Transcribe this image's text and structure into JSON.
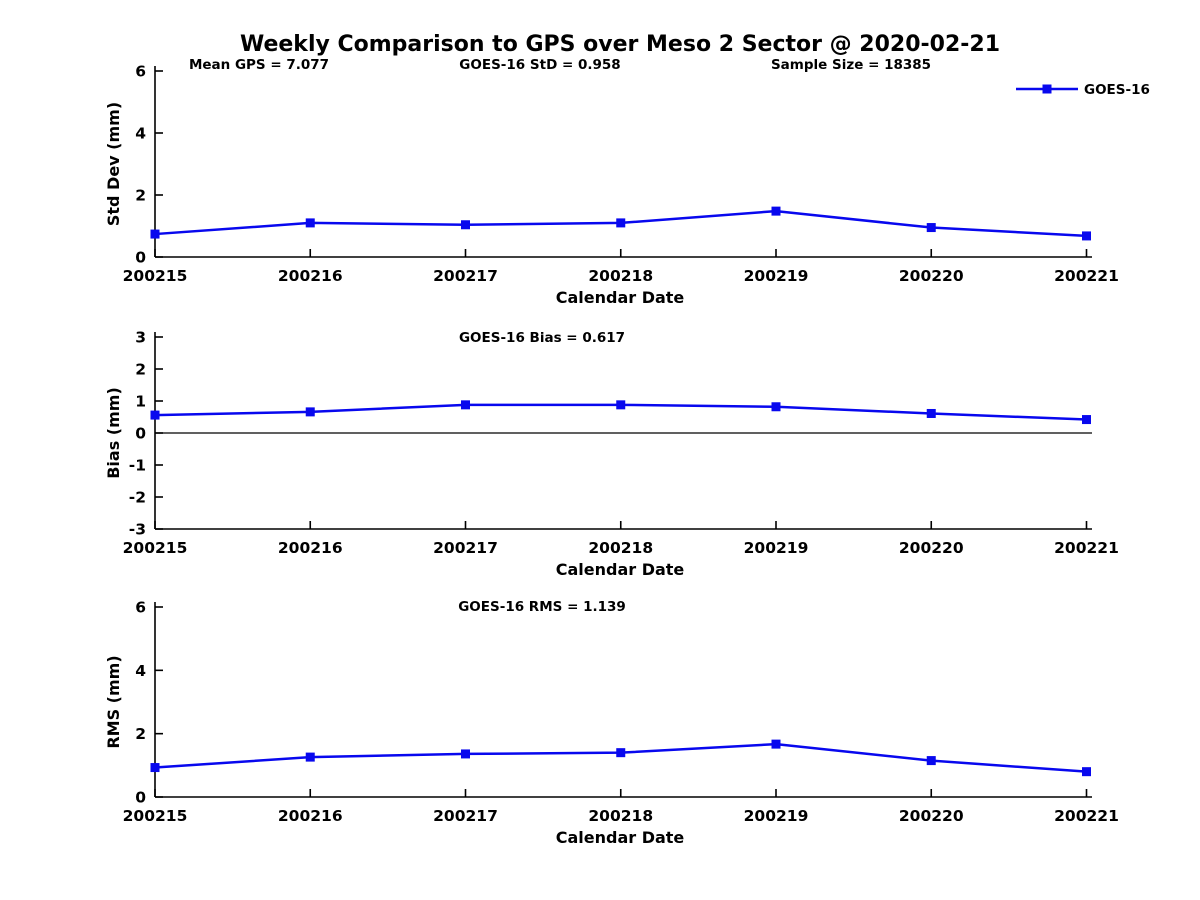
{
  "figure": {
    "title": "Weekly Comparison to GPS over Meso 2 Sector @ 2020-02-21",
    "background": "#ffffff",
    "series_color": "#0808ee",
    "axis_color": "#000000",
    "legend": {
      "label": "GOES-16",
      "position": "upper-right"
    }
  },
  "chart_data": [
    {
      "type": "line",
      "title": "",
      "annotations": [
        "Mean GPS = 7.077",
        "GOES-16 StD = 0.958",
        "Sample Size = 18385"
      ],
      "xlabel": "Calendar Date",
      "ylabel": "Std Dev (mm)",
      "categories": [
        "200215",
        "200216",
        "200217",
        "200218",
        "200219",
        "200220",
        "200221"
      ],
      "series": [
        {
          "name": "GOES-16",
          "values": [
            0.74,
            1.1,
            1.04,
            1.1,
            1.48,
            0.95,
            0.68
          ]
        }
      ],
      "ylim": [
        0,
        6
      ],
      "yticks": [
        0,
        2,
        4,
        6
      ],
      "grid": false,
      "legend_visible": true
    },
    {
      "type": "line",
      "subtitle": "GOES-16 Bias  = 0.617",
      "xlabel": "Calendar Date",
      "ylabel": "Bias (mm)",
      "categories": [
        "200215",
        "200216",
        "200217",
        "200218",
        "200219",
        "200220",
        "200221"
      ],
      "series": [
        {
          "name": "GOES-16",
          "values": [
            0.56,
            0.66,
            0.88,
            0.88,
            0.82,
            0.61,
            0.42
          ]
        }
      ],
      "ylim": [
        -3,
        3
      ],
      "yticks": [
        -3,
        -2,
        -1,
        0,
        1,
        2,
        3
      ],
      "zero_line": true,
      "grid": false,
      "legend_visible": false
    },
    {
      "type": "line",
      "subtitle": "GOES-16 RMS = 1.139",
      "xlabel": "Calendar Date",
      "ylabel": "RMS (mm)",
      "categories": [
        "200215",
        "200216",
        "200217",
        "200218",
        "200219",
        "200220",
        "200221"
      ],
      "series": [
        {
          "name": "GOES-16",
          "values": [
            0.93,
            1.26,
            1.36,
            1.4,
            1.67,
            1.15,
            0.8
          ]
        }
      ],
      "ylim": [
        0,
        6
      ],
      "yticks": [
        0,
        2,
        4,
        6
      ],
      "grid": false,
      "legend_visible": false
    }
  ]
}
